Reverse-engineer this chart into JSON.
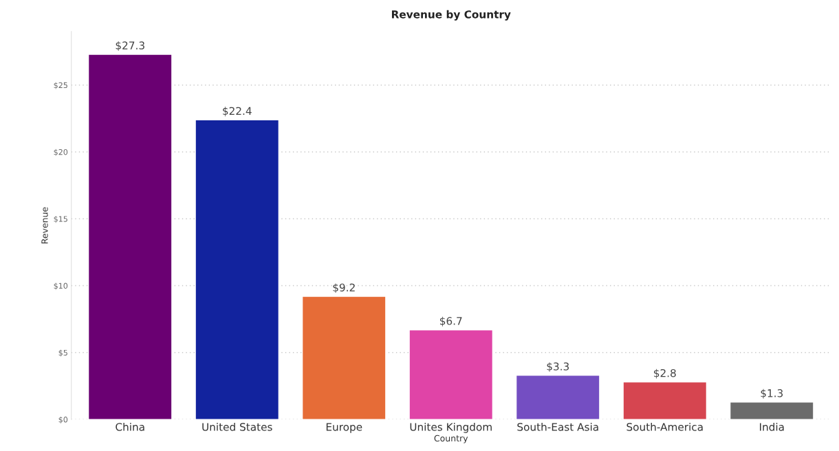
{
  "chart_data": {
    "type": "bar",
    "title": "Revenue by Country",
    "xlabel": "Country",
    "ylabel": "Revenue",
    "categories": [
      "China",
      "United States",
      "Europe",
      "Unites Kingdom",
      "South-East Asia",
      "South-America",
      "India"
    ],
    "values": [
      27.3,
      22.4,
      9.2,
      6.7,
      3.3,
      2.8,
      1.3
    ],
    "colors": [
      "#6a0072",
      "#12239e",
      "#e66c37",
      "#e044a7",
      "#744ec2",
      "#d64550",
      "#6b6b6b"
    ],
    "value_labels": [
      "$27.3",
      "$22.4",
      "$9.2",
      "$6.7",
      "$3.3",
      "$2.8",
      "$1.3"
    ],
    "yticks": [
      {
        "value": 0,
        "label": "$0"
      },
      {
        "value": 5,
        "label": "$5"
      },
      {
        "value": 10,
        "label": "$10"
      },
      {
        "value": 15,
        "label": "$15"
      },
      {
        "value": 20,
        "label": "$20"
      },
      {
        "value": 25,
        "label": "$25"
      }
    ],
    "ylim": [
      0,
      29
    ],
    "grid": "y",
    "legend": false
  }
}
